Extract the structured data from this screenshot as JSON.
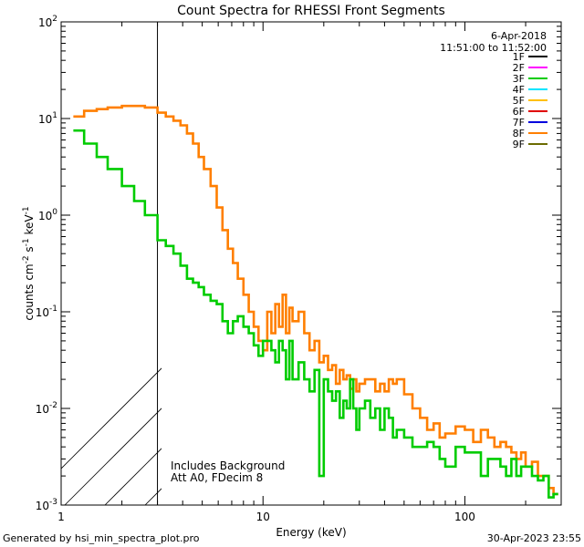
{
  "chart_data": {
    "type": "line",
    "title": "Count Spectra for RHESSI Front Segments",
    "xlabel": "Energy (keV)",
    "ylabel": {
      "main": "counts cm",
      "sup1": "-2",
      "mid1": " s",
      "sup2": "-1",
      "mid2": " keV",
      "sup3": "-1"
    },
    "xscale": "log",
    "yscale": "log",
    "xlim": [
      1,
      300
    ],
    "ylim": [
      0.001,
      100
    ],
    "x_ticks": [
      {
        "value": 1,
        "label": "1"
      },
      {
        "value": 10,
        "label": "10"
      },
      {
        "value": 100,
        "label": "100"
      }
    ],
    "y_ticks": [
      {
        "value": 100,
        "base": "10",
        "exp": "2"
      },
      {
        "value": 10,
        "base": "10",
        "exp": "1"
      },
      {
        "value": 1,
        "base": "10",
        "exp": "0"
      },
      {
        "value": 0.1,
        "base": "10",
        "exp": "-1"
      },
      {
        "value": 0.01,
        "base": "10",
        "exp": "-2"
      },
      {
        "value": 0.001,
        "base": "10",
        "exp": "-3"
      }
    ],
    "hatched_region": [
      1,
      3
    ],
    "legend_header": [
      "6-Apr-2018",
      "11:51:00 to 11:52:00"
    ],
    "legend": [
      {
        "label": "1F",
        "color": "#000000"
      },
      {
        "label": "2F",
        "color": "#ff00ff"
      },
      {
        "label": "3F",
        "color": "#00cc00"
      },
      {
        "label": "4F",
        "color": "#00e5ff"
      },
      {
        "label": "5F",
        "color": "#ffc000"
      },
      {
        "label": "6F",
        "color": "#e00000"
      },
      {
        "label": "7F",
        "color": "#0000dd"
      },
      {
        "label": "8F",
        "color": "#ff7f00"
      },
      {
        "label": "9F",
        "color": "#6b6b00"
      }
    ],
    "annotations": [
      "Includes Background",
      "Att A0, FDecim 8"
    ],
    "series": [
      {
        "name": "8F",
        "color": "#ff7f00",
        "style": "step",
        "edges": [
          1.15,
          1.3,
          1.5,
          1.7,
          2.0,
          2.3,
          2.6,
          3.0,
          3.3,
          3.6,
          3.9,
          4.2,
          4.5,
          4.8,
          5.1,
          5.5,
          5.9,
          6.3,
          6.7,
          7.1,
          7.5,
          8.0,
          8.5,
          9.0,
          9.5,
          10.0,
          10.5,
          11.0,
          11.5,
          12.0,
          12.5,
          13.0,
          13.5,
          14.0,
          15.0,
          16.0,
          17.0,
          18.0,
          19.0,
          20.0,
          21.0,
          22.0,
          23.0,
          24.0,
          25.0,
          26.0,
          27.0,
          28.0,
          29.0,
          30.0,
          32.0,
          34.0,
          36.0,
          38.0,
          40.0,
          42.0,
          44.0,
          46.0,
          50.0,
          55.0,
          60.0,
          65.0,
          70.0,
          75.0,
          80.0,
          90.0,
          100.0,
          110.0,
          120.0,
          130.0,
          140.0,
          150.0,
          160.0,
          170.0,
          180.0,
          190.0,
          200.0,
          215.0,
          230.0,
          245.0,
          260.0,
          275.0,
          290.0
        ],
        "values": [
          10.5,
          12,
          12.5,
          13,
          13.5,
          13.5,
          13,
          11.5,
          10.5,
          9.5,
          8.5,
          7,
          5.5,
          4,
          3,
          2,
          1.2,
          0.7,
          0.45,
          0.32,
          0.22,
          0.15,
          0.1,
          0.07,
          0.05,
          0.04,
          0.1,
          0.06,
          0.12,
          0.07,
          0.15,
          0.06,
          0.11,
          0.08,
          0.1,
          0.06,
          0.04,
          0.05,
          0.03,
          0.035,
          0.025,
          0.028,
          0.018,
          0.025,
          0.02,
          0.022,
          0.016,
          0.02,
          0.015,
          0.018,
          0.02,
          0.02,
          0.015,
          0.018,
          0.015,
          0.02,
          0.018,
          0.02,
          0.014,
          0.01,
          0.008,
          0.006,
          0.007,
          0.005,
          0.0055,
          0.0065,
          0.006,
          0.0045,
          0.006,
          0.005,
          0.004,
          0.0045,
          0.004,
          0.0035,
          0.003,
          0.0035,
          0.0025,
          0.0028,
          0.002,
          0.002,
          0.0015,
          0.0013
        ]
      },
      {
        "name": "3F",
        "color": "#00cc00",
        "style": "step",
        "edges": [
          1.15,
          1.3,
          1.5,
          1.7,
          2.0,
          2.3,
          2.6,
          3.0,
          3.3,
          3.6,
          3.9,
          4.2,
          4.5,
          4.8,
          5.1,
          5.5,
          5.9,
          6.3,
          6.7,
          7.1,
          7.5,
          8.0,
          8.5,
          9.0,
          9.5,
          10.0,
          10.5,
          11.0,
          11.5,
          12.0,
          12.5,
          13.0,
          13.5,
          14.0,
          15.0,
          16.0,
          17.0,
          18.0,
          19.0,
          20.0,
          21.0,
          22.0,
          23.0,
          24.0,
          25.0,
          26.0,
          27.0,
          28.0,
          29.0,
          30.0,
          32.0,
          34.0,
          36.0,
          38.0,
          40.0,
          42.0,
          44.0,
          46.0,
          50.0,
          55.0,
          60.0,
          65.0,
          70.0,
          75.0,
          80.0,
          90.0,
          100.0,
          110.0,
          120.0,
          130.0,
          140.0,
          150.0,
          160.0,
          170.0,
          180.0,
          190.0,
          200.0,
          215.0,
          230.0,
          245.0,
          260.0,
          275.0,
          290.0
        ],
        "values": [
          7.5,
          5.5,
          4,
          3,
          2,
          1.4,
          1.0,
          0.55,
          0.48,
          0.4,
          0.3,
          0.22,
          0.2,
          0.18,
          0.15,
          0.13,
          0.12,
          0.08,
          0.06,
          0.08,
          0.09,
          0.07,
          0.06,
          0.045,
          0.035,
          0.05,
          0.05,
          0.04,
          0.03,
          0.05,
          0.04,
          0.02,
          0.05,
          0.02,
          0.03,
          0.02,
          0.015,
          0.025,
          0.002,
          0.02,
          0.015,
          0.012,
          0.015,
          0.008,
          0.012,
          0.01,
          0.02,
          0.01,
          0.006,
          0.01,
          0.012,
          0.008,
          0.01,
          0.006,
          0.01,
          0.008,
          0.005,
          0.006,
          0.005,
          0.004,
          0.004,
          0.0045,
          0.004,
          0.003,
          0.0025,
          0.004,
          0.0035,
          0.0035,
          0.002,
          0.003,
          0.003,
          0.0025,
          0.002,
          0.003,
          0.002,
          0.0025,
          0.0025,
          0.002,
          0.0018,
          0.002,
          0.0012,
          0.0013
        ]
      }
    ]
  },
  "footer": {
    "left": "Generated by hsi_min_spectra_plot.pro",
    "right": "30-Apr-2023 23:55"
  }
}
